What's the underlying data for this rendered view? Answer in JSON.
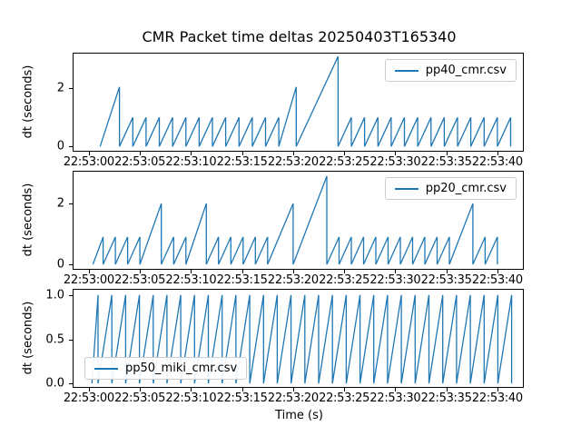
{
  "figure": {
    "title": "CMR Packet time deltas 20250403T165340",
    "xlabel": "Time (s)",
    "line_color": "#1f77b4"
  },
  "axes": {
    "x_tick_labels": [
      "22:53:00",
      "22:53:05",
      "22:53:10",
      "22:53:15",
      "22:53:20",
      "22:53:25",
      "22:53:30",
      "22:53:35",
      "22:53:40"
    ],
    "x_tick_values": [
      0,
      5,
      10,
      15,
      20,
      25,
      30,
      35,
      40
    ]
  },
  "chart_data": [
    {
      "type": "line",
      "name": "pp40_cmr.csv",
      "ylabel": "dt (seconds)",
      "legend_position": "upper right",
      "xlim": [
        -1.5,
        42.5
      ],
      "ylim": [
        -0.15,
        3.2
      ],
      "y_ticks": [
        0,
        2
      ],
      "y_tick_labels": [
        "0",
        "2"
      ],
      "points": [
        [
          1.1,
          0
        ],
        [
          3.0,
          2.05
        ],
        [
          3.0,
          0
        ],
        [
          4.3,
          1
        ],
        [
          4.3,
          0
        ],
        [
          5.6,
          1
        ],
        [
          5.6,
          0
        ],
        [
          6.9,
          1
        ],
        [
          6.9,
          0
        ],
        [
          8.2,
          1
        ],
        [
          8.2,
          0
        ],
        [
          9.5,
          1
        ],
        [
          9.5,
          0
        ],
        [
          10.8,
          1
        ],
        [
          10.8,
          0
        ],
        [
          12.1,
          1
        ],
        [
          12.1,
          0
        ],
        [
          13.4,
          1
        ],
        [
          13.4,
          0
        ],
        [
          14.7,
          1
        ],
        [
          14.7,
          0
        ],
        [
          16.0,
          1
        ],
        [
          16.0,
          0
        ],
        [
          17.3,
          1
        ],
        [
          17.3,
          0
        ],
        [
          18.6,
          1
        ],
        [
          18.6,
          0
        ],
        [
          20.3,
          2.05
        ],
        [
          20.3,
          0
        ],
        [
          24.4,
          3.1
        ],
        [
          24.4,
          0
        ],
        [
          25.7,
          1
        ],
        [
          25.7,
          0
        ],
        [
          27.0,
          1
        ],
        [
          27.0,
          0
        ],
        [
          28.3,
          1
        ],
        [
          28.3,
          0
        ],
        [
          29.6,
          1
        ],
        [
          29.6,
          0
        ],
        [
          30.9,
          1
        ],
        [
          30.9,
          0
        ],
        [
          32.2,
          1
        ],
        [
          32.2,
          0
        ],
        [
          33.5,
          1
        ],
        [
          33.5,
          0
        ],
        [
          34.8,
          1
        ],
        [
          34.8,
          0
        ],
        [
          36.1,
          1
        ],
        [
          36.1,
          0
        ],
        [
          37.4,
          1
        ],
        [
          37.4,
          0
        ],
        [
          38.7,
          1
        ],
        [
          38.7,
          0
        ],
        [
          40.0,
          1
        ],
        [
          40.0,
          0
        ],
        [
          41.3,
          1
        ],
        [
          41.3,
          0
        ]
      ]
    },
    {
      "type": "line",
      "name": "pp20_cmr.csv",
      "ylabel": "dt (seconds)",
      "legend_position": "upper right",
      "xlim": [
        -1.5,
        42.5
      ],
      "ylim": [
        -0.15,
        3.05
      ],
      "y_ticks": [
        0,
        2
      ],
      "y_tick_labels": [
        "0",
        "2"
      ],
      "points": [
        [
          0.4,
          0
        ],
        [
          1.4,
          0.9
        ],
        [
          1.4,
          0
        ],
        [
          2.6,
          0.9
        ],
        [
          2.6,
          0
        ],
        [
          3.8,
          0.9
        ],
        [
          3.8,
          0
        ],
        [
          5.0,
          0.9
        ],
        [
          5.0,
          0
        ],
        [
          7.1,
          2.0
        ],
        [
          7.1,
          0
        ],
        [
          8.3,
          0.9
        ],
        [
          8.3,
          0
        ],
        [
          9.5,
          0.9
        ],
        [
          9.5,
          0
        ],
        [
          11.5,
          2.0
        ],
        [
          11.5,
          0
        ],
        [
          12.7,
          0.9
        ],
        [
          12.7,
          0
        ],
        [
          13.9,
          0.9
        ],
        [
          13.9,
          0
        ],
        [
          15.1,
          0.9
        ],
        [
          15.1,
          0
        ],
        [
          16.3,
          0.9
        ],
        [
          16.3,
          0
        ],
        [
          17.5,
          0.9
        ],
        [
          17.5,
          0
        ],
        [
          20.0,
          2.0
        ],
        [
          20.0,
          0
        ],
        [
          23.3,
          2.9
        ],
        [
          23.3,
          0
        ],
        [
          24.5,
          0.9
        ],
        [
          24.5,
          0
        ],
        [
          25.7,
          0.9
        ],
        [
          25.7,
          0
        ],
        [
          26.9,
          0.9
        ],
        [
          26.9,
          0
        ],
        [
          28.1,
          0.9
        ],
        [
          28.1,
          0
        ],
        [
          29.3,
          0.9
        ],
        [
          29.3,
          0
        ],
        [
          30.5,
          0.9
        ],
        [
          30.5,
          0
        ],
        [
          31.7,
          0.9
        ],
        [
          31.7,
          0
        ],
        [
          32.9,
          0.9
        ],
        [
          32.9,
          0
        ],
        [
          34.1,
          0.9
        ],
        [
          34.1,
          0
        ],
        [
          35.3,
          0.9
        ],
        [
          35.3,
          0
        ],
        [
          37.6,
          2.0
        ],
        [
          37.6,
          0
        ],
        [
          38.8,
          0.9
        ],
        [
          38.8,
          0
        ],
        [
          40.0,
          0.9
        ],
        [
          40.0,
          0
        ]
      ]
    },
    {
      "type": "line",
      "name": "pp50_miki_cmr.csv",
      "ylabel": "dt (seconds)",
      "legend_position": "lower left",
      "xlim": [
        -1.5,
        42.5
      ],
      "ylim": [
        -0.04,
        1.06
      ],
      "y_ticks": [
        0,
        0.5,
        1
      ],
      "y_tick_labels": [
        "0.0",
        "0.5",
        "1.0"
      ],
      "points": [
        [
          0.3,
          0
        ],
        [
          0.9,
          1
        ],
        [
          0.9,
          0
        ],
        [
          2.25,
          1
        ],
        [
          2.25,
          0
        ],
        [
          3.6,
          1
        ],
        [
          3.6,
          0
        ],
        [
          4.95,
          1
        ],
        [
          4.95,
          0
        ],
        [
          6.3,
          1
        ],
        [
          6.3,
          0
        ],
        [
          7.65,
          1
        ],
        [
          7.65,
          0
        ],
        [
          9.0,
          1
        ],
        [
          9.0,
          0
        ],
        [
          10.35,
          1
        ],
        [
          10.35,
          0
        ],
        [
          11.7,
          1
        ],
        [
          11.7,
          0
        ],
        [
          13.05,
          1
        ],
        [
          13.05,
          0
        ],
        [
          14.4,
          1
        ],
        [
          14.4,
          0
        ],
        [
          15.75,
          1
        ],
        [
          15.75,
          0
        ],
        [
          17.1,
          1
        ],
        [
          17.1,
          0
        ],
        [
          18.45,
          1
        ],
        [
          18.45,
          0
        ],
        [
          19.8,
          1
        ],
        [
          19.8,
          0
        ],
        [
          21.15,
          1
        ],
        [
          21.15,
          0
        ],
        [
          22.5,
          1
        ],
        [
          22.5,
          0
        ],
        [
          23.85,
          1
        ],
        [
          23.85,
          0
        ],
        [
          25.2,
          1
        ],
        [
          25.2,
          0
        ],
        [
          26.55,
          1
        ],
        [
          26.55,
          0
        ],
        [
          27.9,
          1
        ],
        [
          27.9,
          0
        ],
        [
          29.25,
          1
        ],
        [
          29.25,
          0
        ],
        [
          30.6,
          1
        ],
        [
          30.6,
          0
        ],
        [
          31.95,
          1
        ],
        [
          31.95,
          0
        ],
        [
          33.3,
          1
        ],
        [
          33.3,
          0
        ],
        [
          34.65,
          1
        ],
        [
          34.65,
          0
        ],
        [
          36.0,
          1
        ],
        [
          36.0,
          0
        ],
        [
          37.35,
          1
        ],
        [
          37.35,
          0
        ],
        [
          38.7,
          1
        ],
        [
          38.7,
          0
        ],
        [
          40.05,
          1
        ],
        [
          40.05,
          0
        ],
        [
          41.4,
          1
        ],
        [
          41.4,
          0
        ]
      ]
    }
  ]
}
